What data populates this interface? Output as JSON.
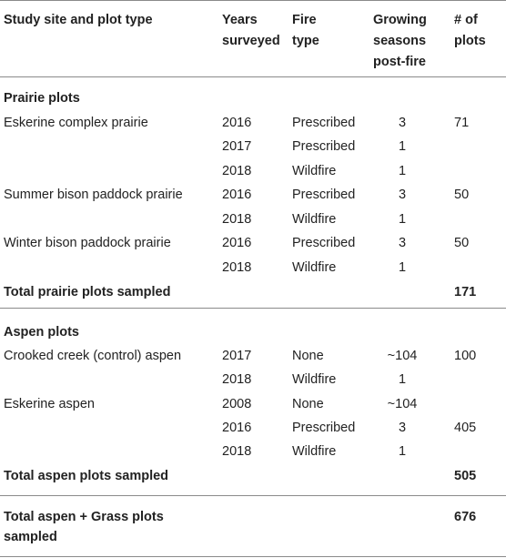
{
  "header": {
    "col1": "Study site and plot type",
    "col2": [
      "Years",
      "surveyed"
    ],
    "col3": [
      "Fire",
      "type"
    ],
    "col4": [
      "Growing",
      "seasons",
      "post-fire"
    ],
    "col5": [
      "# of",
      "plots"
    ]
  },
  "prairie": {
    "section_label": "Prairie plots",
    "rows": [
      {
        "site": "Eskerine complex prairie",
        "year": "2016",
        "fire": "Prescribed",
        "seasons": "3",
        "plots": "71"
      },
      {
        "site": "",
        "year": "2017",
        "fire": "Prescribed",
        "seasons": "1",
        "plots": ""
      },
      {
        "site": "",
        "year": "2018",
        "fire": "Wildfire",
        "seasons": "1",
        "plots": ""
      },
      {
        "site": "Summer bison paddock prairie",
        "year": "2016",
        "fire": "Prescribed",
        "seasons": "3",
        "plots": "50"
      },
      {
        "site": "",
        "year": "2018",
        "fire": "Wildfire",
        "seasons": "1",
        "plots": ""
      },
      {
        "site": "Winter bison paddock prairie",
        "year": "2016",
        "fire": "Prescribed",
        "seasons": "3",
        "plots": "50"
      },
      {
        "site": "",
        "year": "2018",
        "fire": "Wildfire",
        "seasons": "1",
        "plots": ""
      }
    ],
    "total_label": "Total prairie plots sampled",
    "total_value": "171"
  },
  "aspen": {
    "section_label": "Aspen plots",
    "rows": [
      {
        "site": "Crooked creek (control) aspen",
        "year": "2017",
        "fire": "None",
        "seasons": "~104",
        "plots": "100"
      },
      {
        "site": "",
        "year": "2018",
        "fire": "Wildfire",
        "seasons": "1",
        "plots": ""
      },
      {
        "site": "Eskerine aspen",
        "year": "2008",
        "fire": "None",
        "seasons": "~104",
        "plots": ""
      },
      {
        "site": "",
        "year": "2016",
        "fire": "Prescribed",
        "seasons": "3",
        "plots": "405"
      },
      {
        "site": "",
        "year": "2018",
        "fire": "Wildfire",
        "seasons": "1",
        "plots": ""
      }
    ],
    "total_label": "Total aspen plots sampled",
    "total_value": "505"
  },
  "grand_total": {
    "label": [
      "Total aspen + Grass plots",
      "sampled"
    ],
    "value": "676"
  }
}
